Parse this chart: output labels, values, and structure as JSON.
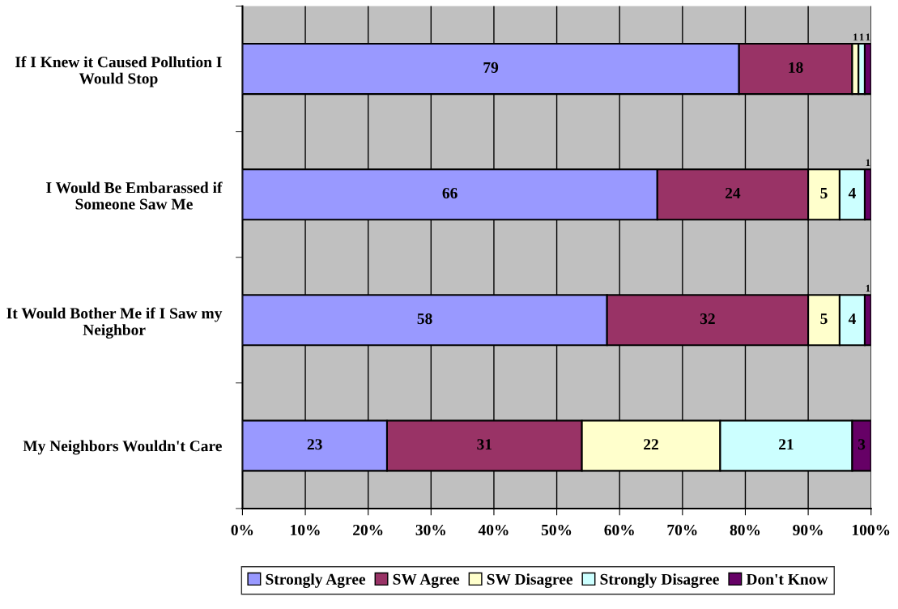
{
  "chart_data": {
    "type": "bar",
    "orientation": "horizontal",
    "stacked": true,
    "data_labels": true,
    "grid": "x",
    "legend": "bottom",
    "categories": [
      "If I Knew it Caused Pollution I Would Stop",
      "I Would Be Embarassed if Someone Saw Me",
      "It Would Bother Me if I Saw my Neighbor",
      "My Neighbors Wouldn't Care"
    ],
    "series": [
      {
        "name": "Strongly Agree",
        "color": "#9999ff",
        "values": [
          79,
          66,
          58,
          23
        ]
      },
      {
        "name": "SW Agree",
        "color": "#993366",
        "values": [
          18,
          24,
          32,
          31
        ]
      },
      {
        "name": "SW Disagree",
        "color": "#ffffcc",
        "values": [
          1,
          5,
          5,
          22
        ]
      },
      {
        "name": "Strongly Disagree",
        "color": "#ccffff",
        "values": [
          1,
          4,
          4,
          21
        ]
      },
      {
        "name": "Don't Know",
        "color": "#660066",
        "values": [
          1,
          1,
          1,
          3
        ]
      }
    ],
    "xlim": [
      0,
      100
    ],
    "xticks": [
      {
        "value": 0,
        "label": "0%"
      },
      {
        "value": 10,
        "label": "10%"
      },
      {
        "value": 20,
        "label": "20%"
      },
      {
        "value": 30,
        "label": "30%"
      },
      {
        "value": 40,
        "label": "40%"
      },
      {
        "value": 50,
        "label": "50%"
      },
      {
        "value": 60,
        "label": "60%"
      },
      {
        "value": 70,
        "label": "70%"
      },
      {
        "value": 80,
        "label": "80%"
      },
      {
        "value": 90,
        "label": "90%"
      },
      {
        "value": 100,
        "label": "100%"
      }
    ]
  }
}
